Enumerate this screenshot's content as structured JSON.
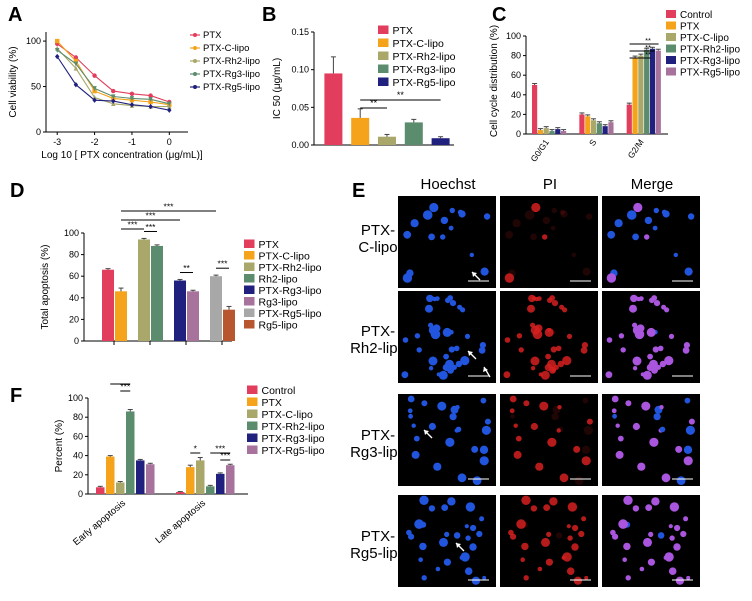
{
  "panels": {
    "A": "A",
    "B": "B",
    "C": "C",
    "D": "D",
    "E": "E",
    "F": "F"
  },
  "colors": {
    "red": "#e23d5c",
    "orange": "#f5a31a",
    "olive": "#a9a86a",
    "green": "#5c8c6e",
    "navy": "#20207e",
    "mauve": "#a7729b",
    "gray": "#a8a8a8",
    "rust": "#b8562f",
    "blue_cells": "#2255dd",
    "red_cells": "#d62020",
    "purple_cells": "#aa55dd"
  },
  "chart_data": [
    {
      "id": "A",
      "type": "line",
      "xlabel": "Log 10 [ PTX concentration (μg/mL)]",
      "ylabel": "Cell viability (%)",
      "x_ticks": [
        "-3",
        "-2",
        "-1",
        "0"
      ],
      "y_ticks": [
        "0",
        "50",
        "100"
      ],
      "xlim": [
        -3.3,
        0.5
      ],
      "ylim": [
        0,
        110
      ],
      "x": [
        -3,
        -2.5,
        -2,
        -1.5,
        -1,
        -0.5,
        0
      ],
      "series": [
        {
          "name": "PTX",
          "color": "#e23d5c",
          "marker": "circle",
          "values": [
            97,
            82,
            62,
            45,
            42,
            40,
            33
          ]
        },
        {
          "name": "PTX-C-lipo",
          "color": "#f5a31a",
          "marker": "square",
          "values": [
            100,
            78,
            45,
            37,
            35,
            33,
            30
          ]
        },
        {
          "name": "PTX-Rh2-lipo",
          "color": "#a9a86a",
          "marker": "triangle",
          "values": [
            92,
            70,
            38,
            31,
            29,
            28,
            28
          ]
        },
        {
          "name": "PTX-Rg3-lipo",
          "color": "#5c8c6e",
          "marker": "triangle-down",
          "values": [
            90,
            75,
            48,
            39,
            37,
            36,
            31
          ]
        },
        {
          "name": "PTX-Rg5-lipo",
          "color": "#20207e",
          "marker": "diamond",
          "values": [
            83,
            52,
            35,
            34,
            30,
            28,
            24
          ]
        }
      ]
    },
    {
      "id": "B",
      "type": "bar",
      "ylabel": "IC 50 (μg/mL)",
      "y_ticks": [
        "0.00",
        "0.05",
        "0.10",
        "0.15"
      ],
      "ylim": [
        0,
        0.15
      ],
      "categories": [
        "PTX",
        "PTX-C-lipo",
        "PTX-Rh2-lipo",
        "PTX-Rg3-lipo",
        "PTX-Rg5-lipo"
      ],
      "values": [
        0.095,
        0.036,
        0.011,
        0.03,
        0.009
      ],
      "errors": [
        0.022,
        0.012,
        0.003,
        0.004,
        0.002
      ],
      "colors": [
        "#e23d5c",
        "#f5a31a",
        "#a9a86a",
        "#5c8c6e",
        "#20207e"
      ],
      "significance": [
        {
          "from": 1,
          "to": 2,
          "label": "**"
        },
        {
          "from": 1,
          "to": 4,
          "label": "**"
        }
      ]
    },
    {
      "id": "C",
      "type": "bar",
      "ylabel": "Cell cycle distribution (%)",
      "y_ticks": [
        "0",
        "20",
        "40",
        "60",
        "80",
        "100"
      ],
      "ylim": [
        0,
        100
      ],
      "categories": [
        "G0/G1",
        "S",
        "G2/M"
      ],
      "series": [
        {
          "name": "Control",
          "color": "#e23d5c",
          "values": [
            50,
            20,
            30
          ]
        },
        {
          "name": "PTX",
          "color": "#f5a31a",
          "values": [
            4,
            18,
            78
          ]
        },
        {
          "name": "PTX-C-lipo",
          "color": "#a9a86a",
          "values": [
            6,
            14,
            80
          ]
        },
        {
          "name": "PTX-Rh2-lipo",
          "color": "#5c8c6e",
          "values": [
            3,
            11,
            86
          ]
        },
        {
          "name": "PTX-Rg3-lipo",
          "color": "#20207e",
          "values": [
            5,
            8,
            87
          ]
        },
        {
          "name": "PTX-Rg5-lipo",
          "color": "#a7729b",
          "values": [
            3,
            12,
            85
          ]
        }
      ],
      "significance": [
        "**",
        "**",
        "**"
      ]
    },
    {
      "id": "D",
      "type": "bar",
      "ylabel": "Total apoptosis (%)",
      "y_ticks": [
        "0",
        "20",
        "40",
        "60",
        "80",
        "100"
      ],
      "ylim": [
        0,
        100
      ],
      "categories": [
        "PTX",
        "PTX-C-lipo",
        "PTX-Rh2-lipo",
        "Rh2-lipo",
        "PTX-Rg3-lipo",
        "Rg3-lipo",
        "PTX-Rg5-lipo",
        "Rg5-lipo"
      ],
      "values": [
        66,
        46,
        94,
        88,
        56,
        46,
        60,
        29
      ],
      "errors": [
        1,
        3,
        1,
        1,
        1,
        1,
        1,
        3
      ],
      "colors": [
        "#e23d5c",
        "#f5a31a",
        "#a9a86a",
        "#5c8c6e",
        "#20207e",
        "#a7729b",
        "#a8a8a8",
        "#b8562f"
      ],
      "significance": [
        "***",
        "***",
        "***",
        "***",
        "**",
        "***",
        "***"
      ]
    },
    {
      "id": "F",
      "type": "bar",
      "ylabel": "Percent (%)",
      "y_ticks": [
        "0",
        "20",
        "40",
        "60",
        "80",
        "100"
      ],
      "ylim": [
        0,
        100
      ],
      "categories": [
        "Early apoptosis",
        "Late apoptosis"
      ],
      "series": [
        {
          "name": "Control",
          "color": "#e23d5c",
          "values": [
            7,
            2
          ]
        },
        {
          "name": "PTX",
          "color": "#f5a31a",
          "values": [
            39,
            28
          ]
        },
        {
          "name": "PTX-C-lipo",
          "color": "#a9a86a",
          "values": [
            12,
            35
          ]
        },
        {
          "name": "PTX-Rh2-lipo",
          "color": "#5c8c6e",
          "values": [
            86,
            8
          ]
        },
        {
          "name": "PTX-Rg3-lipo",
          "color": "#20207e",
          "values": [
            35,
            21
          ]
        },
        {
          "name": "PTX-Rg5-lipo",
          "color": "#a7729b",
          "values": [
            31,
            30
          ]
        }
      ],
      "errors": [
        [
          1,
          0.5
        ],
        [
          1,
          2
        ],
        [
          1,
          3
        ],
        [
          2,
          1
        ],
        [
          1,
          1
        ],
        [
          1,
          1
        ]
      ],
      "significance": [
        "***",
        "***",
        "*",
        "***",
        "***"
      ]
    }
  ],
  "microscopy": {
    "columns": [
      "Hoechst",
      "PI",
      "Merge"
    ],
    "rows": [
      {
        "line1": "PTX-",
        "line2": "C-lipo"
      },
      {
        "line1": "PTX-",
        "line2": "Rh2-lipo"
      },
      {
        "line1": "PTX-",
        "line2": "Rg3-lipo"
      },
      {
        "line1": "PTX-",
        "line2": "Rg5-lipo"
      }
    ]
  }
}
